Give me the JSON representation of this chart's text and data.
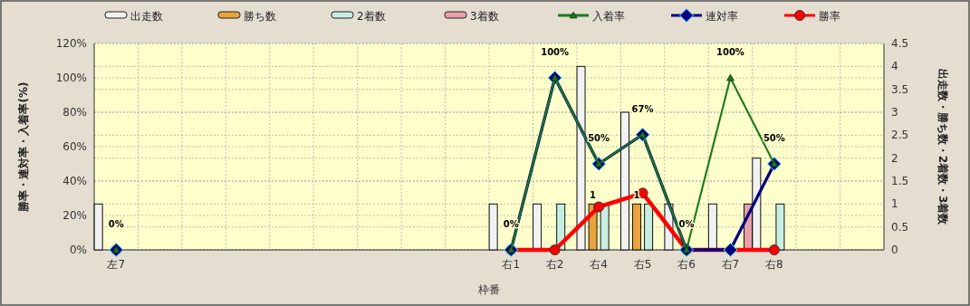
{
  "chart_data": {
    "type": "bar",
    "xlabel": "枠番",
    "ylabel": "勝率・連対率・入着率(%)",
    "y2label": "出走数・勝ち数・2着数・3着数",
    "categories": [
      "左7",
      null,
      null,
      null,
      null,
      null,
      null,
      null,
      null,
      "右1",
      "右2",
      "右4",
      "右5",
      "右6",
      "右7",
      "右8",
      null,
      null
    ],
    "series": [
      {
        "name": "出走数",
        "axis": "y2",
        "color": "#f2f2f2",
        "values": [
          1,
          null,
          null,
          null,
          null,
          null,
          null,
          null,
          null,
          1,
          1,
          4,
          3,
          1,
          1,
          2,
          null,
          null
        ]
      },
      {
        "name": "勝ち数",
        "axis": "y2",
        "color": "#e8a33c",
        "values": [
          0,
          null,
          null,
          null,
          null,
          null,
          null,
          null,
          null,
          0,
          0,
          1,
          1,
          0,
          0,
          0,
          null,
          null
        ],
        "value_labels": [
          null,
          null,
          null,
          null,
          null,
          null,
          null,
          null,
          null,
          null,
          null,
          "1",
          "1",
          null,
          null,
          null,
          null,
          null
        ]
      },
      {
        "name": "2着数",
        "axis": "y2",
        "color": "#c6eee2",
        "values": [
          0,
          null,
          null,
          null,
          null,
          null,
          null,
          null,
          null,
          0,
          1,
          1,
          1,
          0,
          0,
          1,
          null,
          null
        ]
      },
      {
        "name": "3着数",
        "axis": "y2",
        "color": "#e8a0aa",
        "values": [
          0,
          null,
          null,
          null,
          null,
          null,
          null,
          null,
          null,
          0,
          0,
          0,
          0,
          0,
          1,
          0,
          null,
          null
        ]
      },
      {
        "name": "入着率",
        "type": "line",
        "marker": "triangle",
        "color": "#1a7a1a",
        "values": [
          0,
          null,
          null,
          null,
          null,
          null,
          null,
          null,
          null,
          0,
          100,
          50,
          67,
          0,
          100,
          50,
          null,
          null
        ],
        "value_labels": [
          "0%",
          null,
          null,
          null,
          null,
          null,
          null,
          null,
          null,
          "0%",
          "100%",
          "50%",
          "67%",
          "0%",
          "100%",
          "50%",
          null,
          null
        ]
      },
      {
        "name": "連対率",
        "type": "line",
        "marker": "diamond",
        "color": "#000080",
        "values": [
          0,
          null,
          null,
          null,
          null,
          null,
          null,
          null,
          null,
          0,
          100,
          50,
          67,
          0,
          0,
          50,
          null,
          null
        ]
      },
      {
        "name": "勝率",
        "type": "line",
        "marker": "circle",
        "color": "#ff0000",
        "values": [
          0,
          null,
          null,
          null,
          null,
          null,
          null,
          null,
          null,
          0,
          0,
          25,
          33,
          0,
          0,
          0,
          null,
          null
        ]
      }
    ],
    "ylim": [
      0,
      120
    ],
    "yticks": [
      {
        "value": 0,
        "label": "0%"
      },
      {
        "value": 20,
        "label": "20%"
      },
      {
        "value": 40,
        "label": "40%"
      },
      {
        "value": 60,
        "label": "60%"
      },
      {
        "value": 80,
        "label": "80%"
      },
      {
        "value": 100,
        "label": "100%"
      },
      {
        "value": 120,
        "label": "120%"
      }
    ],
    "y2lim": [
      0,
      4.5
    ],
    "y2ticks": [
      0,
      0.5,
      1,
      1.5,
      2,
      2.5,
      3,
      3.5,
      4,
      4.5
    ],
    "grid": true,
    "legend": "top"
  }
}
